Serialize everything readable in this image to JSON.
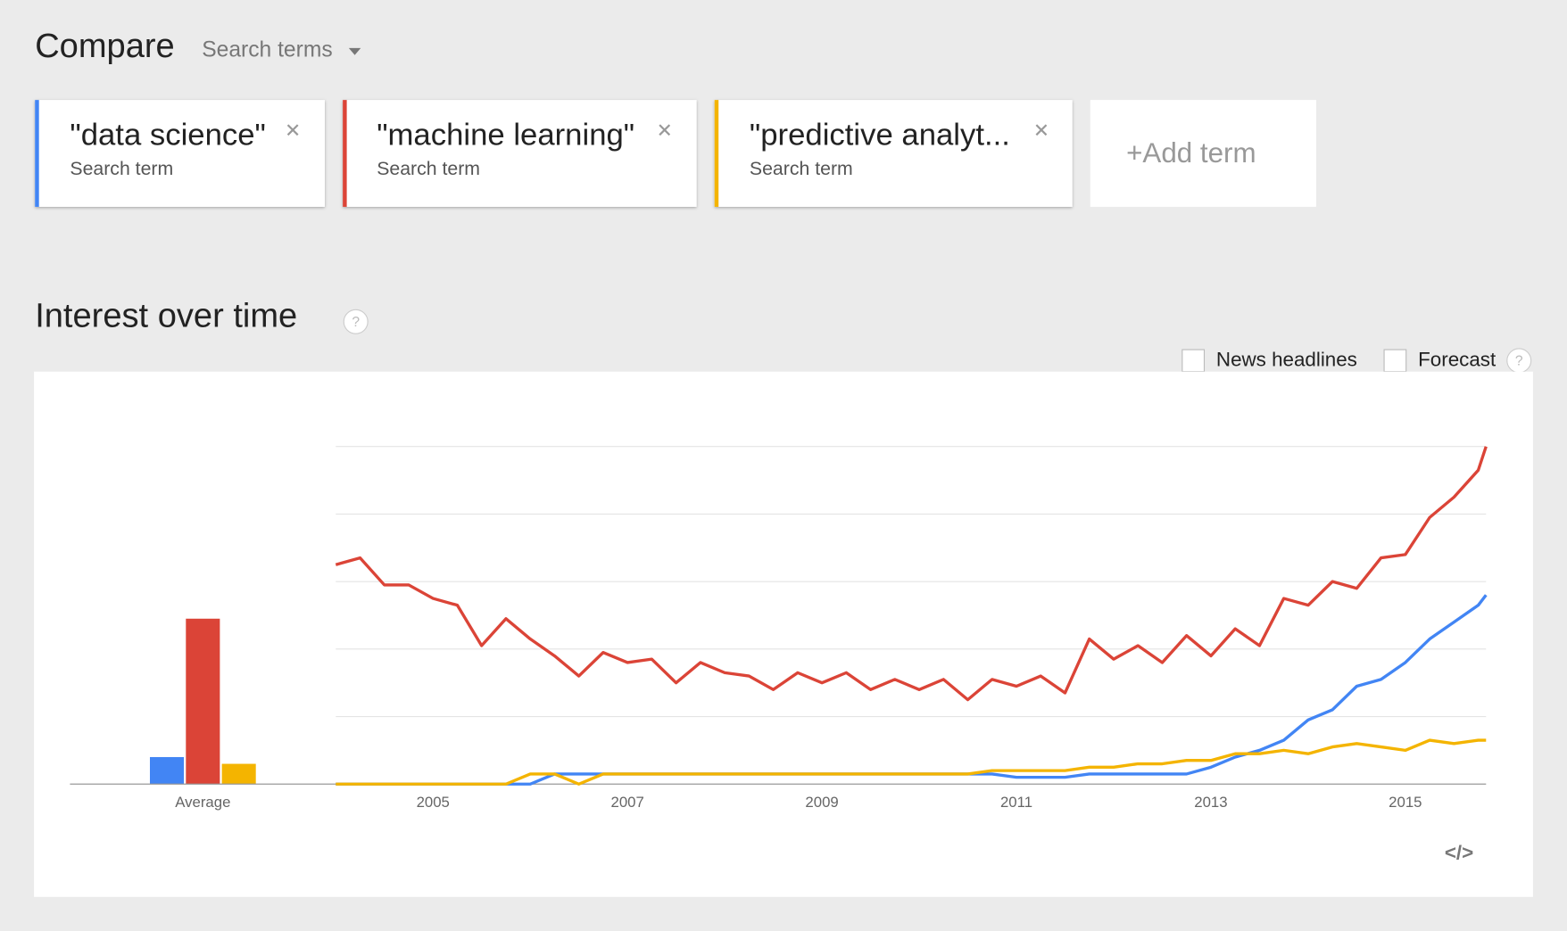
{
  "header": {
    "title": "Compare",
    "menu": "Search terms"
  },
  "terms": [
    {
      "label": "\"data science\"",
      "sublabel": "Search term",
      "color": "#4285f4"
    },
    {
      "label": "\"machine learning\"",
      "sublabel": "Search term",
      "color": "#db4437"
    },
    {
      "label": "\"predictive analyt...",
      "sublabel": "Search term",
      "color": "#f4b400"
    }
  ],
  "add_term": "+Add term",
  "section": {
    "title": "Interest over time",
    "help": "?"
  },
  "options": [
    {
      "label": "News headlines"
    },
    {
      "label": "Forecast",
      "help": "?"
    }
  ],
  "embed": "</>",
  "chart_data": [
    {
      "type": "bar",
      "categories": [
        "Average"
      ],
      "ylim": [
        0,
        100
      ],
      "series": [
        {
          "color": "#4285f4",
          "values": [
            8
          ]
        },
        {
          "color": "#db4437",
          "values": [
            49
          ]
        },
        {
          "color": "#f4b400",
          "values": [
            6
          ]
        }
      ]
    },
    {
      "type": "line",
      "x": [
        2004,
        2004.25,
        2004.5,
        2004.75,
        2005,
        2005.25,
        2005.5,
        2005.75,
        2006,
        2006.25,
        2006.5,
        2006.75,
        2007,
        2007.25,
        2007.5,
        2007.75,
        2008,
        2008.25,
        2008.5,
        2008.75,
        2009,
        2009.25,
        2009.5,
        2009.75,
        2010,
        2010.25,
        2010.5,
        2010.75,
        2011,
        2011.25,
        2011.5,
        2011.75,
        2012,
        2012.25,
        2012.5,
        2012.75,
        2013,
        2013.25,
        2013.5,
        2013.75,
        2014,
        2014.25,
        2014.5,
        2014.75,
        2015,
        2015.25,
        2015.5,
        2015.75,
        2015.83
      ],
      "xlim": [
        2004,
        2015.83
      ],
      "xticks": [
        2005,
        2007,
        2009,
        2011,
        2013,
        2015
      ],
      "ylim": [
        0,
        100
      ],
      "yticks": [
        0,
        20,
        40,
        60,
        80,
        100
      ],
      "grid": true,
      "series": [
        {
          "color": "#4285f4",
          "values": [
            0,
            0,
            0,
            0,
            0,
            0,
            0,
            0,
            0,
            3,
            3,
            3,
            3,
            3,
            3,
            3,
            3,
            3,
            3,
            3,
            3,
            3,
            3,
            3,
            3,
            3,
            3,
            3,
            2,
            2,
            2,
            3,
            3,
            3,
            3,
            3,
            5,
            8,
            10,
            13,
            19,
            22,
            29,
            31,
            36,
            43,
            48,
            53,
            56
          ]
        },
        {
          "color": "#db4437",
          "values": [
            65,
            67,
            59,
            59,
            55,
            53,
            41,
            49,
            43,
            38,
            32,
            39,
            36,
            37,
            30,
            36,
            33,
            32,
            28,
            33,
            30,
            33,
            28,
            31,
            28,
            31,
            25,
            31,
            29,
            32,
            27,
            43,
            37,
            41,
            36,
            44,
            38,
            46,
            41,
            55,
            53,
            60,
            58,
            67,
            68,
            79,
            85,
            93,
            100
          ]
        },
        {
          "color": "#f4b400",
          "values": [
            0,
            0,
            0,
            0,
            0,
            0,
            0,
            0,
            3,
            3,
            0,
            3,
            3,
            3,
            3,
            3,
            3,
            3,
            3,
            3,
            3,
            3,
            3,
            3,
            3,
            3,
            3,
            4,
            4,
            4,
            4,
            5,
            5,
            6,
            6,
            7,
            7,
            9,
            9,
            10,
            9,
            11,
            12,
            11,
            10,
            13,
            12,
            13,
            13
          ]
        }
      ]
    }
  ]
}
